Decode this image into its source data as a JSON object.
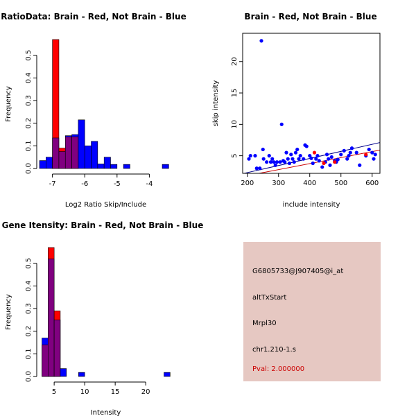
{
  "chart_data": [
    {
      "id": "ratio_hist",
      "type": "bar",
      "title": "RatioData: Brain - Red, Not Brain - Blue",
      "xlabel": "Log2 Ratio Skip/Include",
      "ylabel": "Frequency",
      "xlim": [
        -7.4,
        -3.3
      ],
      "ylim": [
        0,
        0.57
      ],
      "xticks": [
        -7,
        -6,
        -5,
        -4
      ],
      "yticks": [
        0.0,
        0.1,
        0.2,
        0.3,
        0.4,
        0.5
      ],
      "ytick_labels": [
        "0.0",
        "0.1",
        "0.2",
        "0.3",
        "0.4",
        "0.5"
      ],
      "bin_width": 0.2,
      "series": [
        {
          "name": "Not Brain",
          "color": "#0000ff",
          "bins": [
            [
              -7.4,
              0.035
            ],
            [
              -7.2,
              0.05
            ],
            [
              -7.0,
              0.135
            ],
            [
              -6.8,
              0.075
            ],
            [
              -6.6,
              0.145
            ],
            [
              -6.4,
              0.15
            ],
            [
              -6.2,
              0.215
            ],
            [
              -6.0,
              0.1
            ],
            [
              -5.8,
              0.12
            ],
            [
              -5.6,
              0.02
            ],
            [
              -5.4,
              0.05
            ],
            [
              -5.2,
              0.018
            ],
            [
              -4.8,
              0.018
            ],
            [
              -3.6,
              0.018
            ]
          ]
        },
        {
          "name": "Brain",
          "color": "#ff0000",
          "bins": [
            [
              -7.0,
              0.57
            ],
            [
              -6.8,
              0.09
            ],
            [
              -6.6,
              0.14
            ],
            [
              -6.4,
              0.14
            ]
          ]
        }
      ]
    },
    {
      "id": "scatter",
      "type": "scatter",
      "title": "Brain - Red, Not Brain - Blue",
      "xlabel": "include intensity",
      "ylabel": "skip intensity",
      "xlim": [
        185,
        625
      ],
      "ylim": [
        2.2,
        24.5
      ],
      "xticks": [
        200,
        300,
        400,
        500,
        600
      ],
      "yticks": [
        5,
        10,
        15,
        20
      ],
      "series": [
        {
          "name": "Not Brain",
          "color": "#0000ff",
          "points": [
            [
              205,
              4.5
            ],
            [
              210,
              5.0
            ],
            [
              225,
              5.0
            ],
            [
              230,
              3.0
            ],
            [
              240,
              3.0
            ],
            [
              245,
              23.3
            ],
            [
              250,
              6.0
            ],
            [
              252,
              4.5
            ],
            [
              262,
              4.0
            ],
            [
              270,
              5.0
            ],
            [
              275,
              4.0
            ],
            [
              280,
              4.5
            ],
            [
              285,
              4.0
            ],
            [
              290,
              3.5
            ],
            [
              295,
              4.0
            ],
            [
              305,
              4.0
            ],
            [
              310,
              10.0
            ],
            [
              315,
              4.2
            ],
            [
              320,
              4.0
            ],
            [
              325,
              5.5
            ],
            [
              330,
              4.5
            ],
            [
              335,
              3.8
            ],
            [
              340,
              5.2
            ],
            [
              345,
              4.5
            ],
            [
              350,
              4.0
            ],
            [
              355,
              5.5
            ],
            [
              360,
              6.0
            ],
            [
              365,
              4.5
            ],
            [
              370,
              5.0
            ],
            [
              380,
              4.5
            ],
            [
              385,
              6.7
            ],
            [
              390,
              6.5
            ],
            [
              400,
              5.0
            ],
            [
              405,
              4.6
            ],
            [
              410,
              3.8
            ],
            [
              420,
              4.5
            ],
            [
              425,
              5.0
            ],
            [
              430,
              4.2
            ],
            [
              440,
              3.2
            ],
            [
              450,
              4.0
            ],
            [
              455,
              5.2
            ],
            [
              460,
              4.5
            ],
            [
              465,
              3.5
            ],
            [
              470,
              4.8
            ],
            [
              480,
              4.2
            ],
            [
              485,
              4.0
            ],
            [
              490,
              4.4
            ],
            [
              500,
              5.2
            ],
            [
              510,
              5.8
            ],
            [
              520,
              4.5
            ],
            [
              525,
              5.0
            ],
            [
              530,
              5.5
            ],
            [
              535,
              6.2
            ],
            [
              550,
              5.5
            ],
            [
              560,
              3.5
            ],
            [
              580,
              5.0
            ],
            [
              590,
              6.0
            ],
            [
              600,
              5.5
            ],
            [
              605,
              4.5
            ],
            [
              610,
              5.2
            ]
          ]
        },
        {
          "name": "Brain",
          "color": "#ff0000",
          "points": [
            [
              415,
              5.5
            ],
            [
              445,
              3.8
            ],
            [
              480,
              4.0
            ],
            [
              580,
              5.2
            ]
          ]
        }
      ],
      "fit_lines": [
        {
          "name": "Not Brain fit",
          "color": "#00008b",
          "x": [
            185,
            625
          ],
          "y": [
            2.15,
            7.1
          ]
        },
        {
          "name": "Brain fit",
          "color": "#cc0000",
          "x": [
            185,
            625
          ],
          "y": [
            1.7,
            5.9
          ]
        }
      ]
    },
    {
      "id": "intensity_hist",
      "type": "bar",
      "title": "Gene Itensity: Brain - Red, Not Brain - Blue",
      "xlabel": "Intensity",
      "ylabel": "Frequency",
      "xlim": [
        2.6,
        24.3
      ],
      "ylim": [
        0,
        0.57
      ],
      "xticks": [
        5,
        10,
        15,
        20
      ],
      "yticks": [
        0.0,
        0.1,
        0.2,
        0.3,
        0.4,
        0.5
      ],
      "ytick_labels": [
        "0.0",
        "0.1",
        "0.2",
        "0.3",
        "0.4",
        "0.5"
      ],
      "bin_width": 1,
      "series": [
        {
          "name": "Not Brain",
          "color": "#0000ff",
          "bins": [
            [
              3,
              0.17
            ],
            [
              4,
              0.52
            ],
            [
              5,
              0.25
            ],
            [
              6,
              0.035
            ],
            [
              9,
              0.018
            ],
            [
              23,
              0.018
            ]
          ]
        },
        {
          "name": "Brain",
          "color": "#ff0000",
          "bins": [
            [
              3,
              0.14
            ],
            [
              4,
              0.57
            ],
            [
              5,
              0.29
            ]
          ]
        }
      ]
    }
  ],
  "info": {
    "probe_id": "G6805733@J907405@i_at",
    "event_type": "altTxStart",
    "gene": "Mrpl30",
    "locus": "chr1.210-1.s",
    "pval": "Pval: 2.000000"
  },
  "colors": {
    "overlap": "#800080",
    "info_bg": "#e6c8c2",
    "pval": "#cc0000"
  }
}
